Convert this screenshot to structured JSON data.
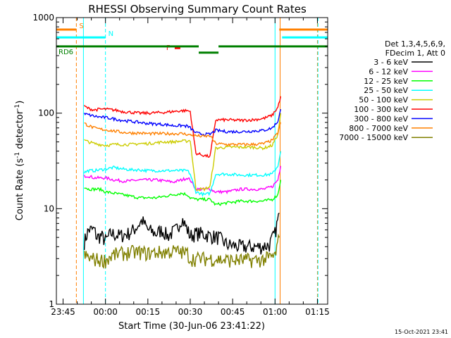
{
  "chart_data": {
    "type": "line",
    "title": "RHESSI Observing Summary Count Rates",
    "xlabel": "Start Time (30-Jun-06 23:41:22)",
    "ylabel_parts": [
      "Count Rate (s",
      "-1",
      " detector",
      "-1",
      ")"
    ],
    "y_scale": "log",
    "ylim": [
      1,
      1000
    ],
    "xlim_minutes": [
      -17.37,
      78.63
    ],
    "x_ticks": [
      {
        "t": -15,
        "label": "23:45"
      },
      {
        "t": 0,
        "label": "00:00"
      },
      {
        "t": 15,
        "label": "00:15"
      },
      {
        "t": 30,
        "label": "00:30"
      },
      {
        "t": 45,
        "label": "00:45"
      },
      {
        "t": 60,
        "label": "01:00"
      },
      {
        "t": 75,
        "label": "01:15"
      }
    ],
    "y_ticks": [
      {
        "v": 1,
        "label": "1"
      },
      {
        "v": 10,
        "label": "10"
      },
      {
        "v": 100,
        "label": "100"
      },
      {
        "v": 1000,
        "label": "1000"
      }
    ],
    "legend_header": [
      "Det 1,3,4,5,6,9,",
      "FDecim 1, Att 0"
    ],
    "series": [
      {
        "name": "3 - 6 keV",
        "color": "#000000",
        "pts": [
          [
            -7.5,
            4.5
          ],
          [
            -6,
            6
          ],
          [
            -4,
            6
          ],
          [
            -3,
            5
          ],
          [
            -1.5,
            5.2
          ],
          [
            0,
            4.6
          ],
          [
            2,
            5.5
          ],
          [
            5,
            5.2
          ],
          [
            8,
            5.5
          ],
          [
            10,
            6
          ],
          [
            13,
            7.5
          ],
          [
            15,
            6
          ],
          [
            18,
            5.5
          ],
          [
            20,
            6
          ],
          [
            22,
            5.2
          ],
          [
            25,
            6
          ],
          [
            27,
            8
          ],
          [
            29,
            6
          ],
          [
            30,
            5.2
          ],
          [
            32,
            5.5
          ],
          [
            34,
            5.5
          ],
          [
            37,
            5.2
          ],
          [
            40,
            5
          ],
          [
            43,
            4.2
          ],
          [
            48,
            4
          ],
          [
            52,
            4
          ],
          [
            55,
            4
          ],
          [
            58,
            4.2
          ],
          [
            60,
            5.5
          ],
          [
            61.5,
            9
          ]
        ]
      },
      {
        "name": "6 - 12 keV",
        "color": "#ff00ff",
        "pts": [
          [
            -7.5,
            22
          ],
          [
            -6,
            22
          ],
          [
            -4,
            21
          ],
          [
            -2,
            21
          ],
          [
            0,
            21
          ],
          [
            3,
            20
          ],
          [
            6,
            19.5
          ],
          [
            9,
            19.5
          ],
          [
            12,
            20
          ],
          [
            15,
            20
          ],
          [
            18,
            20
          ],
          [
            21,
            19.5
          ],
          [
            24,
            19
          ],
          [
            27,
            20
          ],
          [
            29,
            21
          ],
          [
            30,
            20
          ],
          [
            32,
            16
          ],
          [
            35,
            16
          ],
          [
            37,
            16
          ],
          [
            39,
            15
          ],
          [
            43,
            15
          ],
          [
            48,
            16
          ],
          [
            52,
            16
          ],
          [
            56,
            16
          ],
          [
            59,
            17
          ],
          [
            61,
            20
          ],
          [
            62,
            28
          ]
        ]
      },
      {
        "name": "12 - 25 keV",
        "color": "#00ff00",
        "pts": [
          [
            -7.5,
            17
          ],
          [
            -6,
            16
          ],
          [
            -4,
            16
          ],
          [
            -2,
            16
          ],
          [
            0,
            15
          ],
          [
            3,
            14.5
          ],
          [
            6,
            14
          ],
          [
            9,
            13.5
          ],
          [
            12,
            13
          ],
          [
            15,
            13
          ],
          [
            18,
            13
          ],
          [
            21,
            13.5
          ],
          [
            24,
            14
          ],
          [
            27,
            14.5
          ],
          [
            29,
            14
          ],
          [
            30,
            13
          ],
          [
            32,
            12.5
          ],
          [
            35,
            12.5
          ],
          [
            37,
            12.5
          ],
          [
            39,
            11
          ],
          [
            43,
            11.5
          ],
          [
            48,
            12
          ],
          [
            52,
            12
          ],
          [
            56,
            12
          ],
          [
            59,
            12.5
          ],
          [
            61,
            14
          ],
          [
            62,
            20
          ]
        ]
      },
      {
        "name": "25 - 50 keV",
        "color": "#00ffff",
        "pts": [
          [
            -7.5,
            24
          ],
          [
            -6,
            25
          ],
          [
            -4,
            25
          ],
          [
            -2,
            25.5
          ],
          [
            0,
            26
          ],
          [
            3,
            27
          ],
          [
            6,
            26
          ],
          [
            9,
            25.5
          ],
          [
            12,
            25.5
          ],
          [
            15,
            25
          ],
          [
            18,
            25
          ],
          [
            21,
            25
          ],
          [
            24,
            25
          ],
          [
            27,
            25
          ],
          [
            29,
            25
          ],
          [
            30,
            23
          ],
          [
            32,
            15
          ],
          [
            35,
            14
          ],
          [
            37,
            14.5
          ],
          [
            39,
            23
          ],
          [
            43,
            23
          ],
          [
            48,
            22.5
          ],
          [
            52,
            22.5
          ],
          [
            56,
            22.5
          ],
          [
            59,
            23
          ],
          [
            61,
            28
          ],
          [
            62,
            40
          ]
        ]
      },
      {
        "name": "50 - 100 keV",
        "color": "#cccc00",
        "pts": [
          [
            -7.5,
            52
          ],
          [
            -6,
            50
          ],
          [
            -4,
            48
          ],
          [
            -2,
            47
          ],
          [
            0,
            46
          ],
          [
            3,
            47
          ],
          [
            6,
            47
          ],
          [
            9,
            47
          ],
          [
            12,
            48
          ],
          [
            15,
            48
          ],
          [
            18,
            49
          ],
          [
            21,
            50
          ],
          [
            24,
            50
          ],
          [
            27,
            51
          ],
          [
            29,
            51
          ],
          [
            30,
            52
          ],
          [
            32,
            16
          ],
          [
            35,
            16
          ],
          [
            37,
            17
          ],
          [
            39,
            43
          ],
          [
            43,
            44
          ],
          [
            48,
            44
          ],
          [
            52,
            44
          ],
          [
            56,
            43
          ],
          [
            59,
            46
          ],
          [
            61,
            60
          ],
          [
            62,
            100
          ]
        ]
      },
      {
        "name": "100 - 300 keV",
        "color": "#ff0000",
        "pts": [
          [
            -7.5,
            118
          ],
          [
            -6,
            112
          ],
          [
            -4,
            108
          ],
          [
            -2,
            110
          ],
          [
            0,
            110
          ],
          [
            3,
            108
          ],
          [
            6,
            104
          ],
          [
            9,
            102
          ],
          [
            12,
            100
          ],
          [
            15,
            100
          ],
          [
            18,
            101
          ],
          [
            21,
            102
          ],
          [
            24,
            104
          ],
          [
            27,
            106
          ],
          [
            29,
            106
          ],
          [
            30,
            104
          ],
          [
            32,
            38
          ],
          [
            35,
            36
          ],
          [
            37,
            35
          ],
          [
            39,
            85
          ],
          [
            43,
            85
          ],
          [
            48,
            84
          ],
          [
            52,
            85
          ],
          [
            56,
            88
          ],
          [
            59,
            95
          ],
          [
            61,
            115
          ],
          [
            62,
            150
          ]
        ]
      },
      {
        "name": "300 - 800 keV",
        "color": "#0000ff",
        "pts": [
          [
            -7.5,
            98
          ],
          [
            -6,
            96
          ],
          [
            -4,
            93
          ],
          [
            -2,
            91
          ],
          [
            0,
            90
          ],
          [
            3,
            87
          ],
          [
            6,
            84
          ],
          [
            9,
            82
          ],
          [
            12,
            80
          ],
          [
            15,
            78
          ],
          [
            18,
            77
          ],
          [
            21,
            76
          ],
          [
            24,
            74
          ],
          [
            27,
            74
          ],
          [
            29,
            73
          ],
          [
            30,
            70
          ],
          [
            32,
            62
          ],
          [
            35,
            60
          ],
          [
            37,
            60
          ],
          [
            39,
            66
          ],
          [
            43,
            64
          ],
          [
            48,
            64
          ],
          [
            52,
            65
          ],
          [
            56,
            66
          ],
          [
            59,
            70
          ],
          [
            61,
            82
          ],
          [
            62,
            110
          ]
        ]
      },
      {
        "name": "800 - 7000 keV",
        "color": "#ff8000",
        "pts": [
          [
            -7.5,
            78
          ],
          [
            -6,
            74
          ],
          [
            -4,
            70
          ],
          [
            -2,
            68
          ],
          [
            0,
            67
          ],
          [
            3,
            65
          ],
          [
            6,
            63
          ],
          [
            9,
            62
          ],
          [
            12,
            62
          ],
          [
            15,
            61
          ],
          [
            18,
            61
          ],
          [
            21,
            61
          ],
          [
            24,
            61
          ],
          [
            27,
            61
          ],
          [
            29,
            60
          ],
          [
            30,
            59
          ],
          [
            32,
            58
          ],
          [
            35,
            57
          ],
          [
            37,
            58
          ],
          [
            39,
            48
          ],
          [
            43,
            47
          ],
          [
            48,
            47
          ],
          [
            52,
            47
          ],
          [
            56,
            48
          ],
          [
            59,
            52
          ],
          [
            61,
            62
          ],
          [
            62,
            80
          ]
        ]
      },
      {
        "name": "7000 - 15000 keV",
        "color": "#808000",
        "pts": [
          [
            -7.5,
            3.2
          ],
          [
            -5,
            3
          ],
          [
            -2,
            2.9
          ],
          [
            0,
            2.9
          ],
          [
            3,
            3.3
          ],
          [
            6,
            3.4
          ],
          [
            9,
            3.5
          ],
          [
            12,
            3.5
          ],
          [
            15,
            3.4
          ],
          [
            18,
            3.5
          ],
          [
            21,
            3.5
          ],
          [
            24,
            3.6
          ],
          [
            27,
            3.5
          ],
          [
            29,
            3.4
          ],
          [
            30,
            3
          ],
          [
            32,
            3
          ],
          [
            35,
            3
          ],
          [
            38,
            3
          ],
          [
            42,
            2.9
          ],
          [
            46,
            2.9
          ],
          [
            50,
            2.9
          ],
          [
            54,
            2.9
          ],
          [
            57,
            3
          ],
          [
            60,
            3.2
          ],
          [
            61.5,
            5
          ]
        ]
      }
    ],
    "flags": [
      {
        "label": "S",
        "color": "#ff8000",
        "segments": [
          [
            -17.37,
            -10.3
          ],
          [
            61.5,
            78.63
          ]
        ],
        "level": 750
      },
      {
        "label": "N",
        "color": "#00ffff",
        "segments": [
          [
            -17.37,
            0
          ],
          [
            62.5,
            78.63
          ]
        ],
        "level": 620
      },
      {
        "label": "F",
        "color": "#ff0000",
        "segments": [
          [
            24.5,
            26.5
          ]
        ],
        "level": 480
      },
      {
        "label": "RD6",
        "color": "#008000",
        "segments": [
          [
            -17.37,
            33
          ],
          [
            40,
            78.63
          ]
        ],
        "level": 500
      }
    ],
    "saa_segment": {
      "color": "#008000",
      "segment": [
        33,
        40
      ],
      "level": 430
    },
    "vlines": [
      {
        "t": -10.3,
        "color": "#ff8000",
        "dash": true
      },
      {
        "t": -7.8,
        "color": "#00ffff",
        "dash": false
      },
      {
        "t": 0,
        "color": "#00ffff",
        "dash": true
      },
      {
        "t": 60,
        "color": "#00ffff",
        "dash": false
      },
      {
        "t": 61.8,
        "color": "#ff8000",
        "dash": false
      },
      {
        "t": 75,
        "color": "#ff8000",
        "dash": true
      },
      {
        "t": 75.2,
        "color": "#00ffff",
        "dash": true
      }
    ]
  },
  "footer": {
    "timestamp": "15-Oct-2021 23:41"
  }
}
